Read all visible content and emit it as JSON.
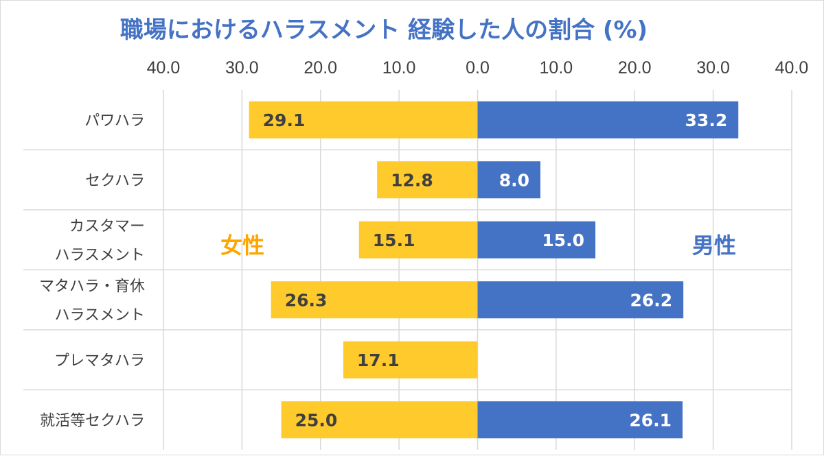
{
  "chart_data": {
    "type": "bar",
    "orientation": "horizontal-diverging",
    "title": "職場におけるハラスメント 経験した人の割合 (%)",
    "x_ticks": [
      "40.0",
      "30.0",
      "20.0",
      "10.0",
      "0.0",
      "10.0",
      "20.0",
      "30.0",
      "40.0"
    ],
    "xlim": [
      -40,
      40
    ],
    "categories": [
      [
        "パワハラ"
      ],
      [
        "セクハラ"
      ],
      [
        "カスタマー",
        "ハラスメント"
      ],
      [
        "マタハラ・育休",
        "ハラスメント"
      ],
      [
        "プレマタハラ"
      ],
      [
        "就活等セクハラ"
      ]
    ],
    "series": [
      {
        "name": "女性",
        "side": "left",
        "color": "#ffca2b",
        "label_color": "#404040",
        "values": [
          29.1,
          12.8,
          15.1,
          26.3,
          17.1,
          25.0
        ]
      },
      {
        "name": "男性",
        "side": "right",
        "color": "#4472c4",
        "label_color": "#ffffff",
        "values": [
          33.2,
          8.0,
          15.0,
          26.2,
          null,
          26.1
        ]
      }
    ],
    "legend_colors": {
      "女性": "#ffa500",
      "男性": "#4472c4"
    },
    "grid": true,
    "legend": "inline"
  }
}
